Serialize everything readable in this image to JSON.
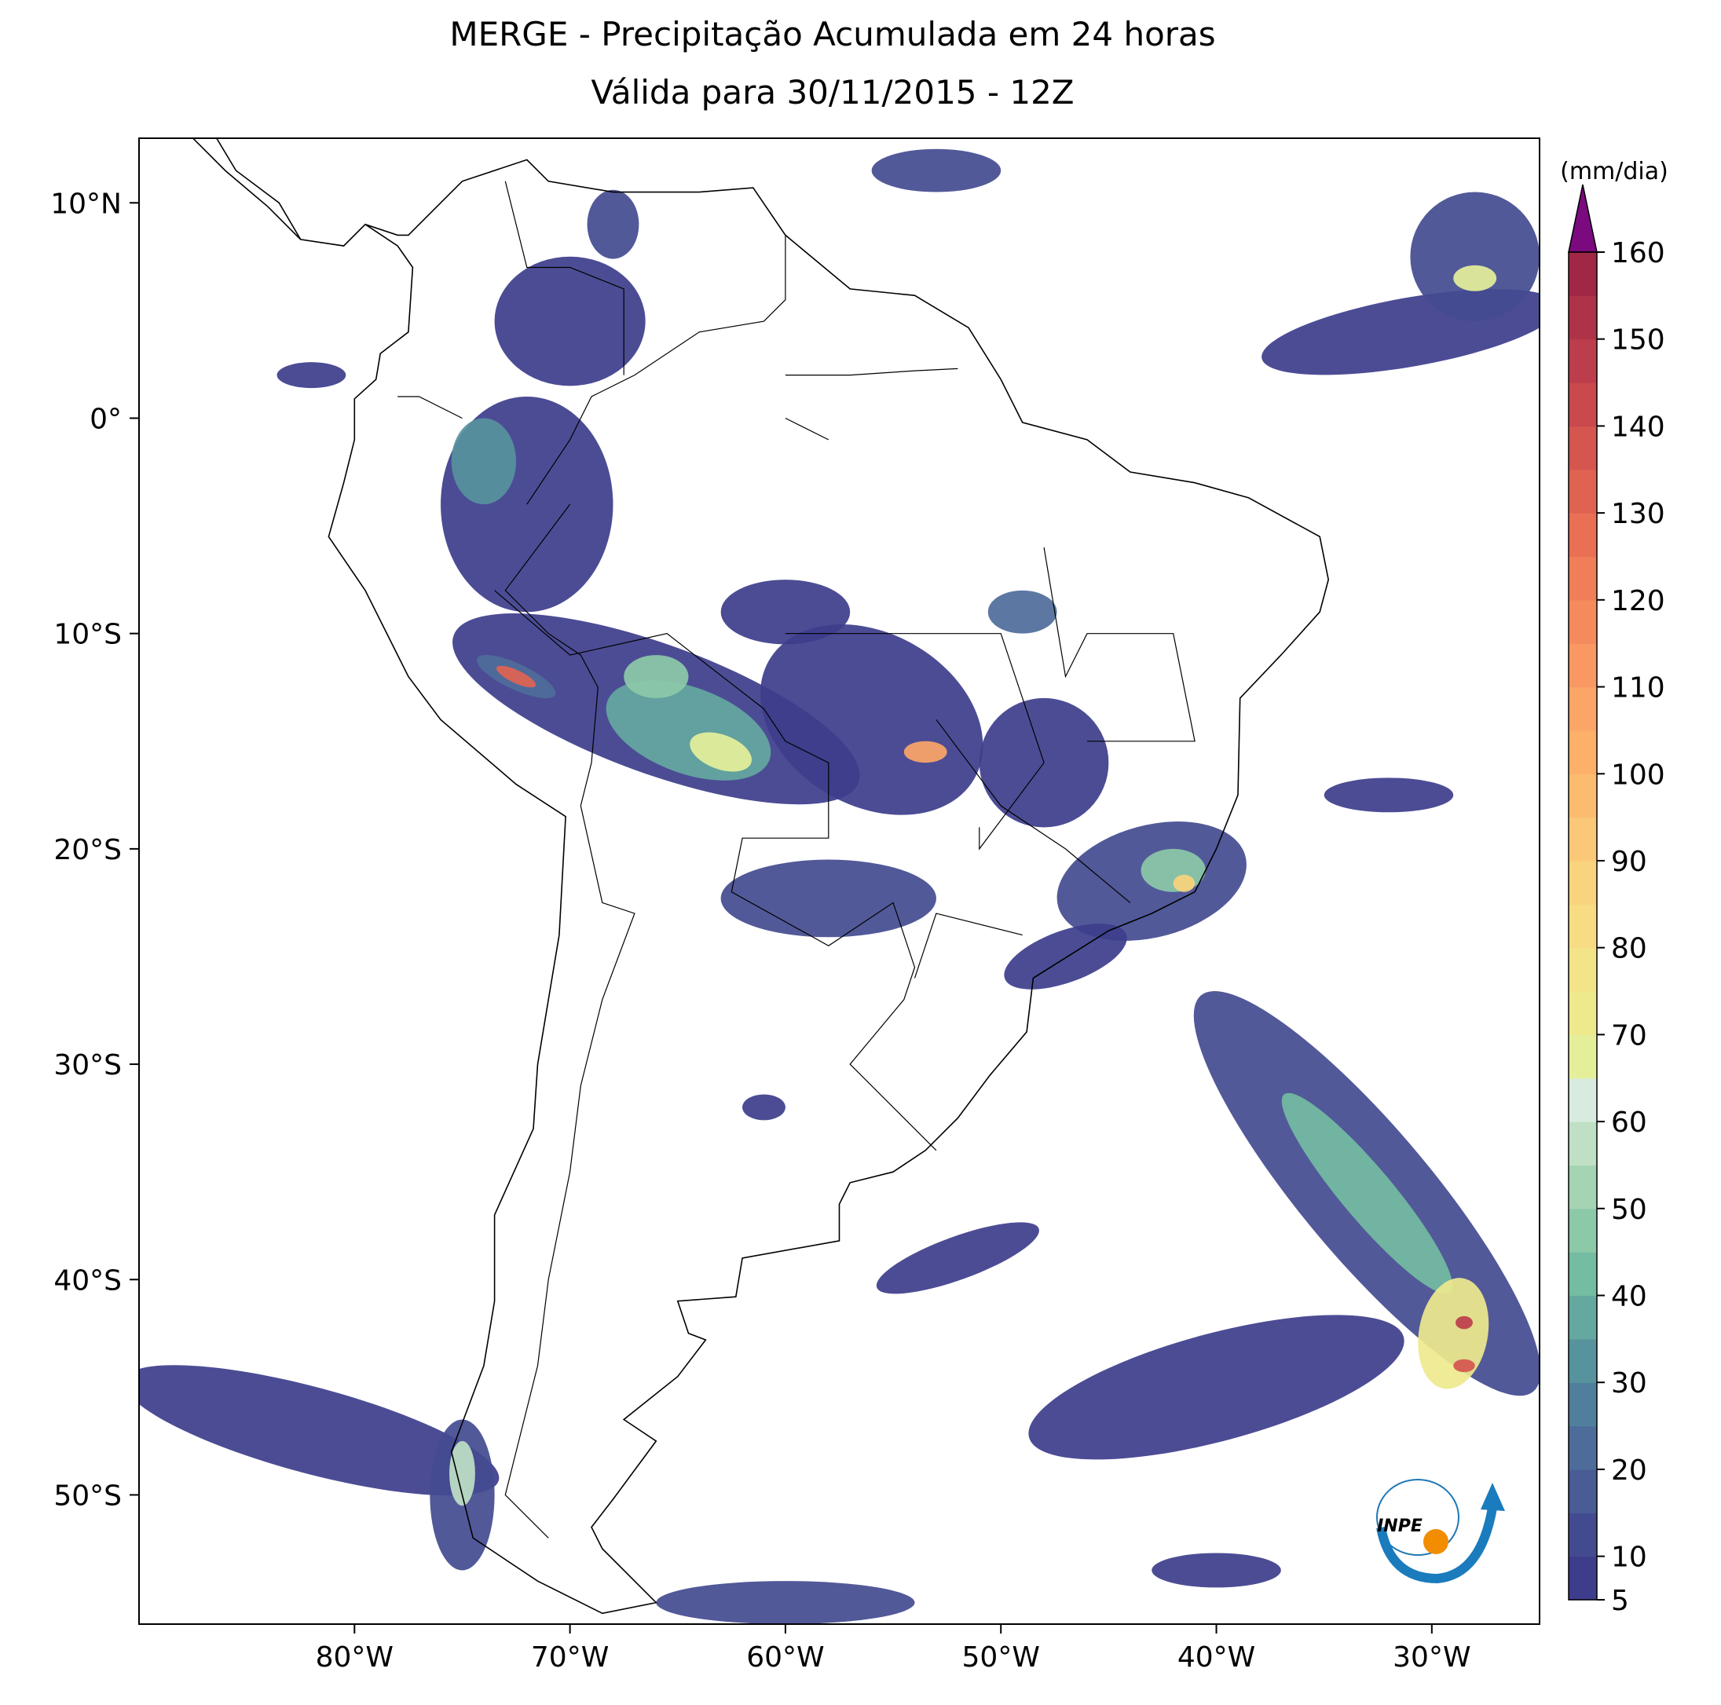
{
  "chart_data": {
    "type": "map",
    "title": "MERGE - Precipitação Acumulada em 24 horas",
    "subtitle": "Válida para 30/11/2015 - 12Z",
    "xlim": [
      -90,
      -25
    ],
    "ylim": [
      -56,
      13
    ],
    "xticks": [
      {
        "value": -80,
        "label": "80°W"
      },
      {
        "value": -70,
        "label": "70°W"
      },
      {
        "value": -60,
        "label": "60°W"
      },
      {
        "value": -50,
        "label": "50°W"
      },
      {
        "value": -40,
        "label": "40°W"
      },
      {
        "value": -30,
        "label": "30°W"
      }
    ],
    "yticks": [
      {
        "value": 10,
        "label": "10°N"
      },
      {
        "value": 0,
        "label": "0°"
      },
      {
        "value": -10,
        "label": "10°S"
      },
      {
        "value": -20,
        "label": "20°S"
      },
      {
        "value": -30,
        "label": "30°S"
      },
      {
        "value": -40,
        "label": "40°S"
      },
      {
        "value": -50,
        "label": "50°S"
      }
    ],
    "colorbar": {
      "label": "(mm/dia)",
      "lim": [
        5,
        160
      ],
      "ticks": [
        5,
        10,
        20,
        30,
        40,
        50,
        60,
        70,
        80,
        90,
        100,
        110,
        120,
        130,
        140,
        150,
        160
      ],
      "colors": [
        "#3d3d8c",
        "#434b90",
        "#495c96",
        "#4e6c9a",
        "#4f7f9c",
        "#56939d",
        "#64a89f",
        "#74bca2",
        "#8cc9a8",
        "#a5d4b3",
        "#bfe0c5",
        "#d8ebdf",
        "#e5ef9a",
        "#eee98d",
        "#f3e389",
        "#f7dc84",
        "#f9d37d",
        "#fbc877",
        "#fcbc70",
        "#fcb06a",
        "#fba566",
        "#f99862",
        "#f58b5d",
        "#f07e59",
        "#e97055",
        "#e06352",
        "#d5554f",
        "#c9494d",
        "#bc3d4b",
        "#ae3248",
        "#a02846"
      ],
      "extend_color": "#7b0a7f"
    },
    "logo": "INPE"
  }
}
